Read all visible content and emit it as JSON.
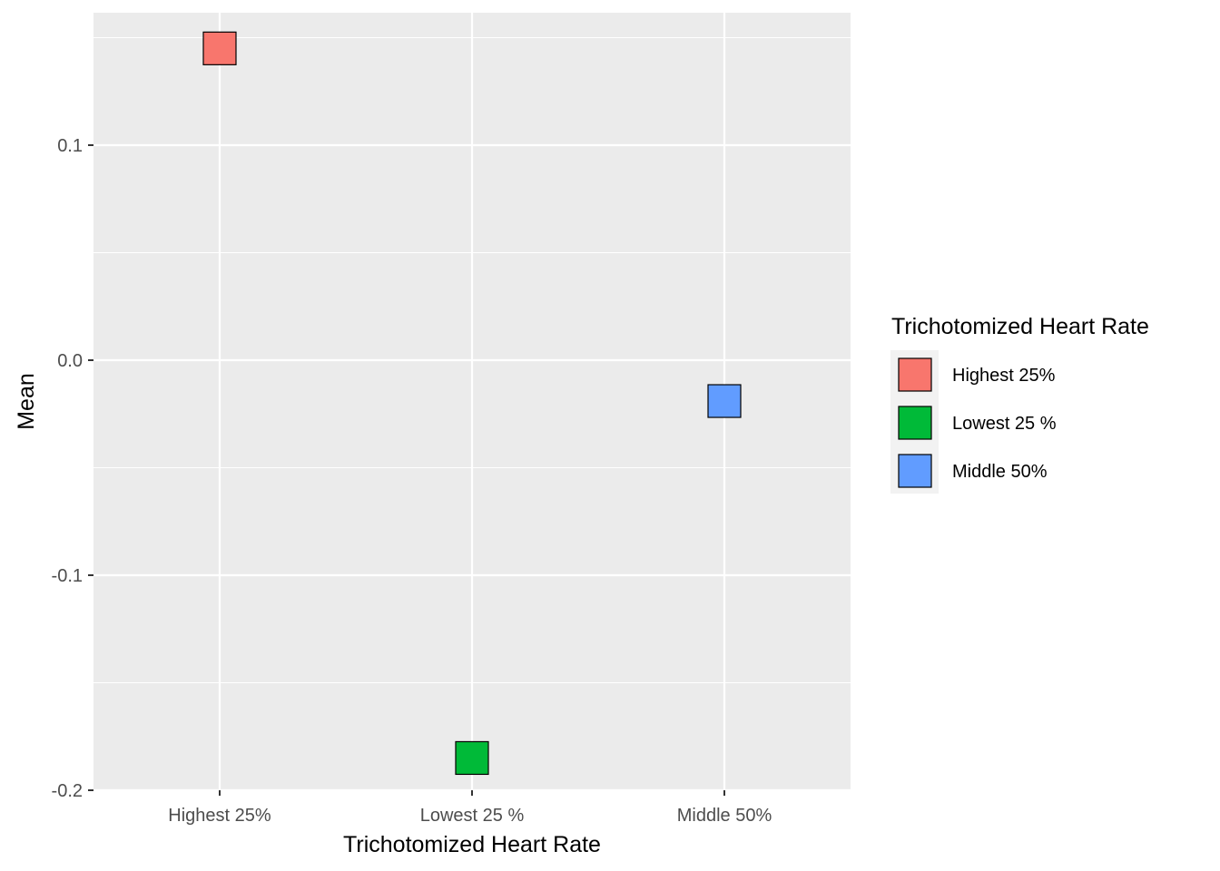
{
  "chart_data": {
    "type": "scatter",
    "xlabel": "Trichotomized Heart Rate",
    "ylabel": "Mean",
    "categories": [
      "Highest 25%",
      "Lowest 25 %",
      "Middle 50%"
    ],
    "y_ticks": [
      0.1,
      0.0,
      -0.1,
      -0.2
    ],
    "y_tick_labels": [
      "0.1",
      "0.0",
      "-0.1",
      "-0.2"
    ],
    "ylim": [
      -0.2,
      0.155
    ],
    "grid": true,
    "points": [
      {
        "category": "Highest 25%",
        "value": 0.145,
        "fill": "#F8766D"
      },
      {
        "category": "Lowest 25 %",
        "value": -0.185,
        "fill": "#00BA38"
      },
      {
        "category": "Middle 50%",
        "value": -0.019,
        "fill": "#619CFF"
      }
    ],
    "legend": {
      "title": "Trichotomized Heart Rate",
      "position": "right",
      "items": [
        {
          "label": "Highest 25%",
          "color": "#F8766D"
        },
        {
          "label": "Lowest 25 %",
          "color": "#00BA38"
        },
        {
          "label": "Middle 50%",
          "color": "#619CFF"
        }
      ]
    },
    "colors": {
      "panel_background": "#EBEBEB",
      "grid": "#FFFFFF",
      "point_outline": "#000000"
    }
  }
}
